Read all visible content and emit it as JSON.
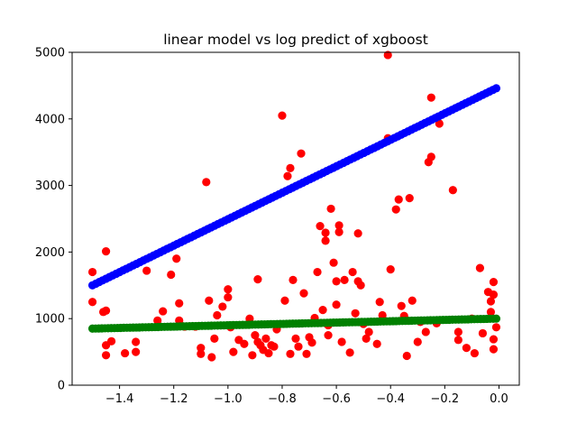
{
  "chart_data": {
    "type": "scatter",
    "title": "linear model vs log predict of xgboost",
    "xlabel": "",
    "ylabel": "",
    "xlim": [
      -1.575,
      0.075
    ],
    "ylim": [
      0,
      5000
    ],
    "x_ticks": [
      -1.4,
      -1.2,
      -1.0,
      -0.8,
      -0.6,
      -0.4,
      -0.2,
      0.0
    ],
    "x_tick_labels": [
      "−1.4",
      "−1.2",
      "−1.0",
      "−0.8",
      "−0.6",
      "−0.4",
      "−0.2",
      "0.0"
    ],
    "y_ticks": [
      0,
      1000,
      2000,
      3000,
      4000,
      5000
    ],
    "y_tick_labels": [
      "0",
      "1000",
      "2000",
      "3000",
      "4000",
      "5000"
    ],
    "grid": false,
    "series": [
      {
        "color": "#ff0000",
        "points": [
          [
            -1.5,
            1700
          ],
          [
            -1.5,
            1250
          ],
          [
            -1.46,
            1100
          ],
          [
            -1.45,
            2010
          ],
          [
            -1.45,
            1120
          ],
          [
            -1.45,
            600
          ],
          [
            -1.45,
            450
          ],
          [
            -1.43,
            660
          ],
          [
            -1.38,
            480
          ],
          [
            -1.34,
            500
          ],
          [
            -1.34,
            650
          ],
          [
            -1.3,
            1720
          ],
          [
            -1.26,
            970
          ],
          [
            -1.24,
            1110
          ],
          [
            -1.21,
            1660
          ],
          [
            -1.19,
            1900
          ],
          [
            -1.18,
            1230
          ],
          [
            -1.18,
            970
          ],
          [
            -1.16,
            880
          ],
          [
            -1.12,
            880
          ],
          [
            -1.1,
            560
          ],
          [
            -1.1,
            470
          ],
          [
            -1.08,
            3050
          ],
          [
            -1.07,
            1270
          ],
          [
            -1.06,
            420
          ],
          [
            -1.05,
            700
          ],
          [
            -1.04,
            1050
          ],
          [
            -1.02,
            1180
          ],
          [
            -1.0,
            1440
          ],
          [
            -1.0,
            1320
          ],
          [
            -0.99,
            870
          ],
          [
            -0.98,
            500
          ],
          [
            -0.96,
            680
          ],
          [
            -0.94,
            620
          ],
          [
            -0.92,
            1000
          ],
          [
            -0.91,
            450
          ],
          [
            -0.9,
            750
          ],
          [
            -0.89,
            1590
          ],
          [
            -0.89,
            650
          ],
          [
            -0.88,
            600
          ],
          [
            -0.87,
            530
          ],
          [
            -0.86,
            700
          ],
          [
            -0.85,
            480
          ],
          [
            -0.84,
            600
          ],
          [
            -0.83,
            580
          ],
          [
            -0.82,
            840
          ],
          [
            -0.8,
            4050
          ],
          [
            -0.79,
            1270
          ],
          [
            -0.78,
            3140
          ],
          [
            -0.77,
            3260
          ],
          [
            -0.77,
            470
          ],
          [
            -0.76,
            1580
          ],
          [
            -0.75,
            700
          ],
          [
            -0.74,
            580
          ],
          [
            -0.73,
            3480
          ],
          [
            -0.72,
            1380
          ],
          [
            -0.71,
            470
          ],
          [
            -0.7,
            720
          ],
          [
            -0.69,
            640
          ],
          [
            -0.68,
            1010
          ],
          [
            -0.67,
            1700
          ],
          [
            -0.66,
            2390
          ],
          [
            -0.65,
            1130
          ],
          [
            -0.64,
            2290
          ],
          [
            -0.64,
            2170
          ],
          [
            -0.63,
            900
          ],
          [
            -0.63,
            750
          ],
          [
            -0.62,
            2650
          ],
          [
            -0.61,
            1840
          ],
          [
            -0.6,
            1560
          ],
          [
            -0.6,
            1210
          ],
          [
            -0.59,
            2400
          ],
          [
            -0.59,
            2300
          ],
          [
            -0.58,
            650
          ],
          [
            -0.57,
            1580
          ],
          [
            -0.55,
            490
          ],
          [
            -0.54,
            1700
          ],
          [
            -0.53,
            1080
          ],
          [
            -0.52,
            2280
          ],
          [
            -0.52,
            1560
          ],
          [
            -0.51,
            1500
          ],
          [
            -0.5,
            920
          ],
          [
            -0.49,
            700
          ],
          [
            -0.48,
            800
          ],
          [
            -0.45,
            620
          ],
          [
            -0.44,
            1250
          ],
          [
            -0.43,
            1050
          ],
          [
            -0.41,
            4960
          ],
          [
            -0.41,
            3710
          ],
          [
            -0.4,
            1740
          ],
          [
            -0.38,
            2640
          ],
          [
            -0.37,
            2790
          ],
          [
            -0.36,
            1190
          ],
          [
            -0.35,
            1040
          ],
          [
            -0.34,
            440
          ],
          [
            -0.33,
            2810
          ],
          [
            -0.32,
            1270
          ],
          [
            -0.3,
            650
          ],
          [
            -0.29,
            950
          ],
          [
            -0.27,
            800
          ],
          [
            -0.26,
            3350
          ],
          [
            -0.25,
            4320
          ],
          [
            -0.25,
            3430
          ],
          [
            -0.23,
            930
          ],
          [
            -0.22,
            3930
          ],
          [
            -0.17,
            2930
          ],
          [
            -0.15,
            800
          ],
          [
            -0.15,
            680
          ],
          [
            -0.12,
            560
          ],
          [
            -0.1,
            1000
          ],
          [
            -0.09,
            480
          ],
          [
            -0.07,
            1760
          ],
          [
            -0.06,
            780
          ],
          [
            -0.04,
            1400
          ],
          [
            -0.03,
            1260
          ],
          [
            -0.03,
            1100
          ],
          [
            -0.02,
            1550
          ],
          [
            -0.02,
            1360
          ],
          [
            -0.02,
            1000
          ],
          [
            -0.02,
            690
          ],
          [
            -0.02,
            540
          ],
          [
            -0.01,
            870
          ]
        ]
      },
      {
        "color": "#0000ff",
        "line": {
          "x_start": -1.5,
          "y_start": 1500,
          "x_end": -0.01,
          "y_end": 4460,
          "count": 120
        }
      },
      {
        "color": "#008000",
        "line": {
          "x_start": -1.5,
          "y_start": 850,
          "x_end": -0.01,
          "y_end": 1000,
          "count": 130
        }
      }
    ]
  }
}
